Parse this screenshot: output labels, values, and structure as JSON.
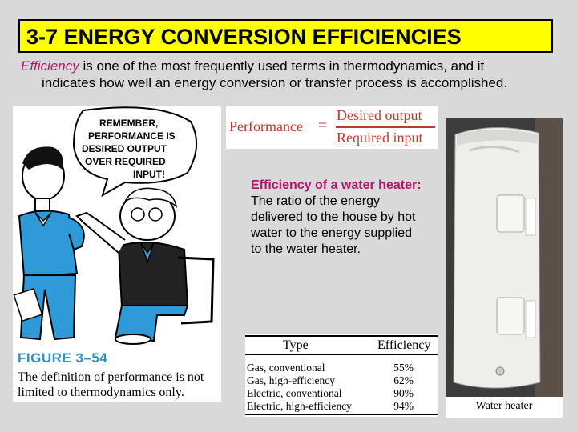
{
  "slide": {
    "title": "3-7 ENERGY CONVERSION EFFICIENCIES",
    "intro": {
      "term": "Efficiency",
      "rest_line1": " is one of the most frequently used terms in thermodynamics, and it",
      "line2": "indicates how well an energy conversion or transfer process is accomplished."
    },
    "cartoon": {
      "speech_lines": [
        "REMEMBER,",
        "PERFORMANCE IS",
        "DESIRED OUTPUT",
        "OVER REQUIRED",
        "INPUT!"
      ],
      "figure_label": "FIGURE 3–54",
      "caption": "The definition of performance is not limited to thermodynamics only."
    },
    "formula": {
      "lhs": "Performance",
      "equals": "=",
      "numerator": "Desired output",
      "denominator": "Required input"
    },
    "heater_description": {
      "term": "Efficiency of a water heater:",
      "text": " The ratio of the energy delivered to the house by hot water to the energy supplied to the water heater."
    },
    "efficiency_table": {
      "headers": {
        "type": "Type",
        "efficiency": "Efficiency"
      },
      "rows": [
        {
          "type": "Gas, conventional",
          "efficiency": "55%"
        },
        {
          "type": "Gas, high-efficiency",
          "efficiency": "62%"
        },
        {
          "type": "Electric, conventional",
          "efficiency": "90%"
        },
        {
          "type": "Electric, high-efficiency",
          "efficiency": "94%"
        }
      ]
    },
    "heater_photo": {
      "caption": "Water heater"
    },
    "colors": {
      "title_bg": "#ffff00",
      "accent_term": "#b0186f",
      "figure_label": "#2f8fc9",
      "formula": "#c0392b",
      "cartoon_blue": "#2e9ad8"
    }
  }
}
